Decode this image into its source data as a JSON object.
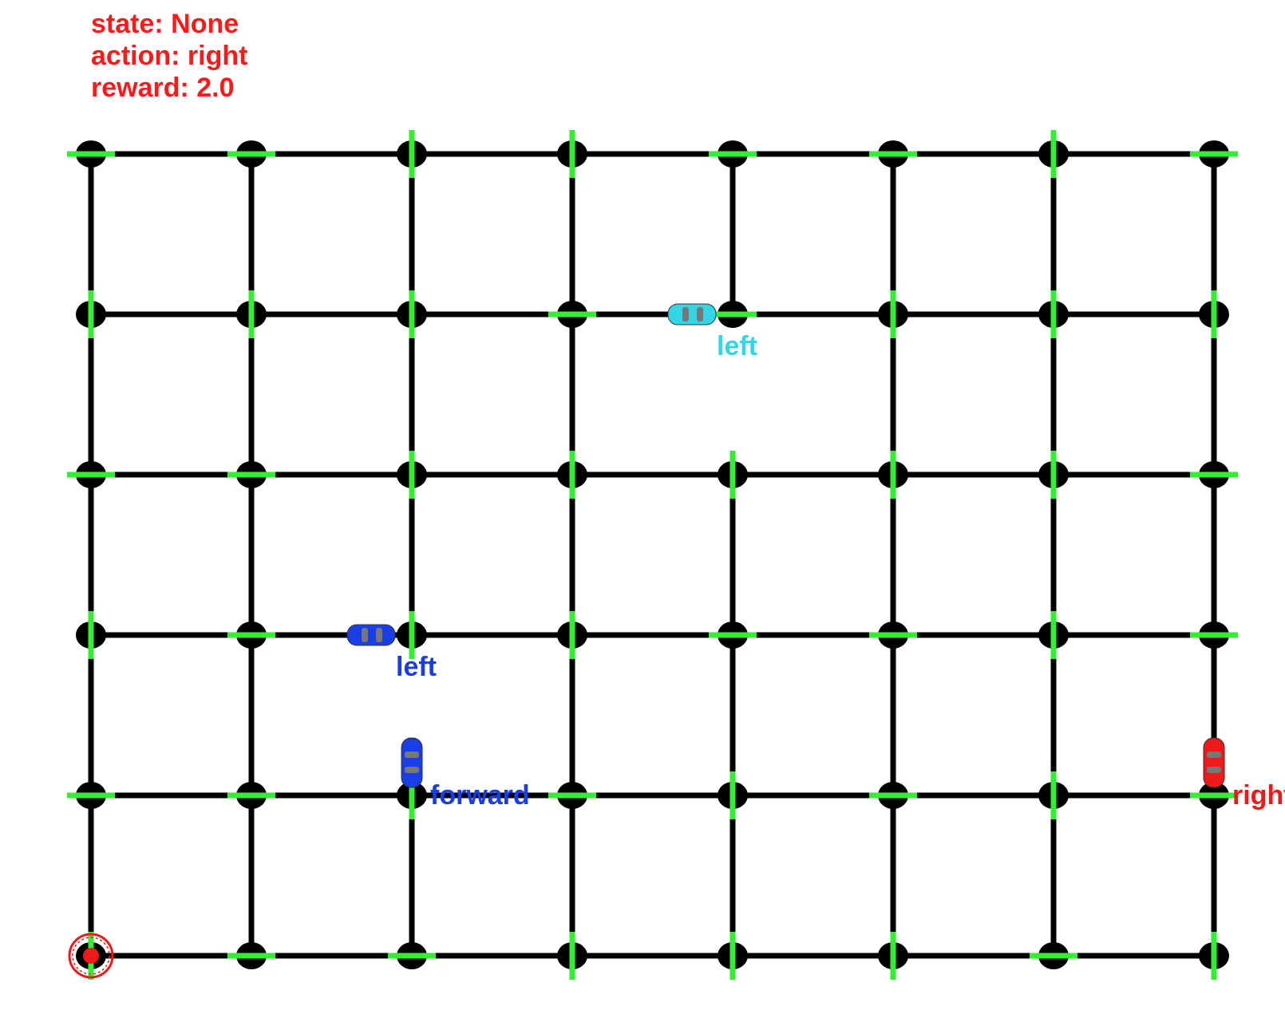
{
  "hud": {
    "state_label": "state: None",
    "action_label": "action: right",
    "reward_label": "reward: 2.0"
  },
  "grid": {
    "columns": 8,
    "rows": 6,
    "road_color": "#000000",
    "light_color": "#33ee33",
    "blocked_segments": [
      {
        "col": 4,
        "from_row": 1,
        "to_row": 2
      },
      {
        "col": 2,
        "from_row": 3,
        "to_row": 4
      }
    ],
    "lights": [
      [
        "h",
        "h",
        "v",
        "v",
        "h",
        "h",
        "v",
        "h"
      ],
      [
        "v",
        "v",
        "v",
        "h",
        "h",
        "v",
        "v",
        "v"
      ],
      [
        "h",
        "h",
        "v",
        "v",
        "v",
        "v",
        "v",
        "h"
      ],
      [
        "v",
        "h",
        "v",
        "v",
        "h",
        "h",
        "v",
        "h"
      ],
      [
        "h",
        "h",
        "v",
        "h",
        "v",
        "h",
        "v",
        "h"
      ],
      [
        "v",
        "h",
        "h",
        "v",
        "v",
        "v",
        "h",
        "v"
      ]
    ]
  },
  "agents": [
    {
      "id": "cyan-car",
      "color": "#33d6e6",
      "col": 4,
      "row": 1,
      "heading": "west",
      "action": "left"
    },
    {
      "id": "blue-car-1",
      "color": "#1a3ee6",
      "col": 2,
      "row": 3,
      "heading": "west",
      "action": "left"
    },
    {
      "id": "blue-car-2",
      "color": "#1a3ee6",
      "col": 2,
      "row": 4,
      "heading": "north",
      "action": "forward"
    },
    {
      "id": "red-car",
      "color": "#ee1a1a",
      "col": 7,
      "row": 4,
      "heading": "north",
      "action": "right"
    }
  ],
  "destination": {
    "col": 0,
    "row": 5,
    "color": "#ee1a1a"
  }
}
